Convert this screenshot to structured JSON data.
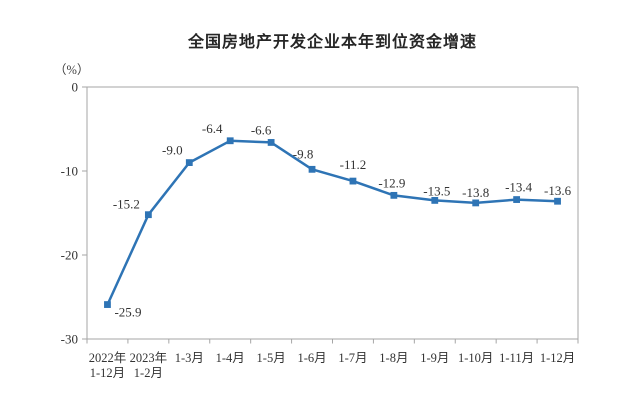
{
  "chart_data": {
    "type": "line",
    "title": "全国房地产开发企业本年到位资金增速",
    "unit_label": "（%）",
    "categories": [
      "2022年\n1-12月",
      "2023年\n1-2月",
      "1-3月",
      "1-4月",
      "1-5月",
      "1-6月",
      "1-7月",
      "1-8月",
      "1-9月",
      "1-10月",
      "1-11月",
      "1-12月"
    ],
    "values": [
      -25.9,
      -15.2,
      -9.0,
      -6.4,
      -6.6,
      -9.8,
      -11.2,
      -12.9,
      -13.5,
      -13.8,
      -13.4,
      -13.6
    ],
    "data_labels": [
      "-25.9",
      "-15.2",
      "-9.0",
      "-6.4",
      "-6.6",
      "-9.8",
      "-11.2",
      "-12.9",
      "-13.5",
      "-13.8",
      "-13.4",
      "-13.6"
    ],
    "ylabel": "",
    "xlabel": "",
    "ylim": [
      -30,
      0
    ],
    "yticks": [
      0,
      -10,
      -20,
      -30
    ],
    "grid": false,
    "legend_position": "none",
    "series_color": "#2E74B5",
    "axis_color": "#A6A6A6",
    "tick_text_color": "#404040",
    "label_text_color": "#333333"
  }
}
